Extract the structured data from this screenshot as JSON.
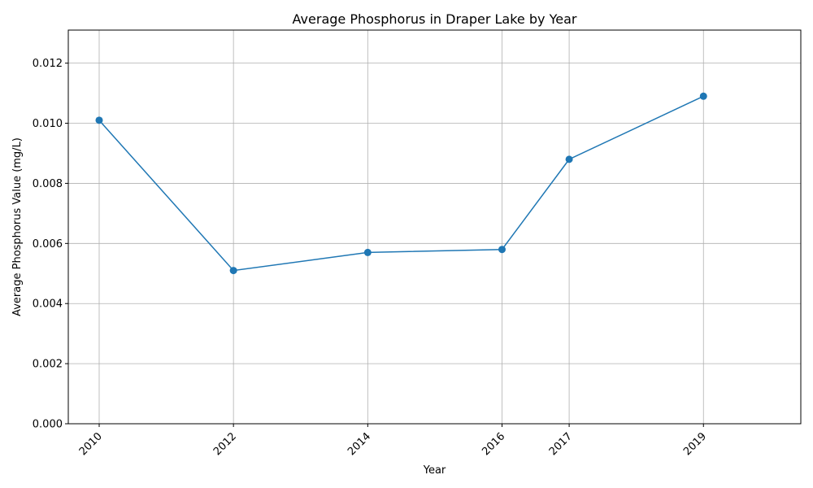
{
  "chart_data": {
    "type": "line",
    "title": "Average Phosphorus in Draper Lake by Year",
    "xlabel": "Year",
    "ylabel": "Average Phosphorus Value (mg/L)",
    "x": [
      2010,
      2012,
      2014,
      2016,
      2017,
      2019
    ],
    "x_tick_labels": [
      "2010",
      "2012",
      "2014",
      "2016",
      "2017",
      "2019"
    ],
    "series": [
      {
        "values": [
          0.0101,
          0.0051,
          0.0057,
          0.0058,
          0.0088,
          0.0109
        ]
      }
    ],
    "xlim": [
      2009.54,
      2020.45
    ],
    "ylim": [
      0.0,
      0.0131
    ],
    "y_ticks": [
      0.0,
      0.002,
      0.004,
      0.006,
      0.008,
      0.01,
      0.012
    ],
    "y_tick_labels": [
      "0.000",
      "0.002",
      "0.004",
      "0.006",
      "0.008",
      "0.010",
      "0.012"
    ],
    "grid": true,
    "x_tick_rotation": "45deg",
    "line_color": "#1f77b4",
    "marker": "circle"
  }
}
